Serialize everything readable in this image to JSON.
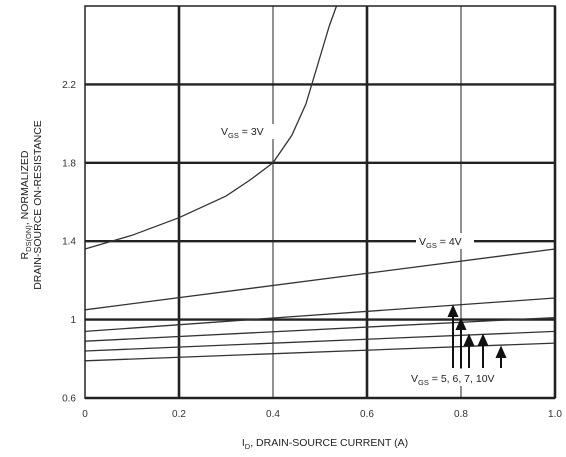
{
  "chart_data": {
    "type": "line",
    "xlabel": {
      "main": "I",
      "sub": "D",
      "rest": ", DRAIN-SOURCE CURRENT (A)"
    },
    "ylabel": {
      "line1": {
        "main": "R",
        "sub": "DS(ON)",
        "rest": ", NORMALIZED"
      },
      "line2": "DRAIN-SOURCE ON-RESISTANCE"
    },
    "xlim": [
      0,
      1.0
    ],
    "ylim": [
      0.6,
      2.6
    ],
    "xticks": [
      {
        "value": 0,
        "label": "0"
      },
      {
        "value": 0.2,
        "label": "0.2"
      },
      {
        "value": 0.4,
        "label": "0.4"
      },
      {
        "value": 0.6,
        "label": "0.6"
      },
      {
        "value": 0.8,
        "label": "0.8"
      },
      {
        "value": 1.0,
        "label": "1.0"
      }
    ],
    "yticks": [
      {
        "value": 0.6,
        "label": "0.6"
      },
      {
        "value": 1.0,
        "label": "1"
      },
      {
        "value": 1.4,
        "label": "1.4"
      },
      {
        "value": 1.8,
        "label": "1.8"
      },
      {
        "value": 2.2,
        "label": "2.2"
      }
    ],
    "grid": true,
    "series": [
      {
        "name": "VGS = 3V",
        "x": [
          0,
          0.1,
          0.2,
          0.3,
          0.35,
          0.4,
          0.44,
          0.47,
          0.5,
          0.52,
          0.535
        ],
        "y": [
          1.36,
          1.43,
          1.52,
          1.63,
          1.71,
          1.8,
          1.94,
          2.1,
          2.34,
          2.5,
          2.6
        ]
      },
      {
        "name": "VGS = 4V",
        "x": [
          0,
          1.0
        ],
        "y": [
          1.05,
          1.36
        ]
      },
      {
        "name": "VGS = 5V",
        "x": [
          0,
          1.0
        ],
        "y": [
          0.94,
          1.11
        ]
      },
      {
        "name": "VGS = 6V",
        "x": [
          0,
          1.0
        ],
        "y": [
          0.89,
          1.01
        ]
      },
      {
        "name": "VGS = 7V",
        "x": [
          0,
          1.0
        ],
        "y": [
          0.84,
          0.94
        ]
      },
      {
        "name": "VGS = 10V",
        "x": [
          0,
          1.0
        ],
        "y": [
          0.79,
          0.88
        ]
      }
    ],
    "annotations": [
      {
        "main": "V",
        "sub": "GS",
        "rest": " = 3V"
      },
      {
        "main": "V",
        "sub": "GS",
        "rest": " = 4V"
      },
      {
        "main": "V",
        "sub": "GS",
        "rest": " = 5, 6, 7, 10V"
      }
    ]
  }
}
